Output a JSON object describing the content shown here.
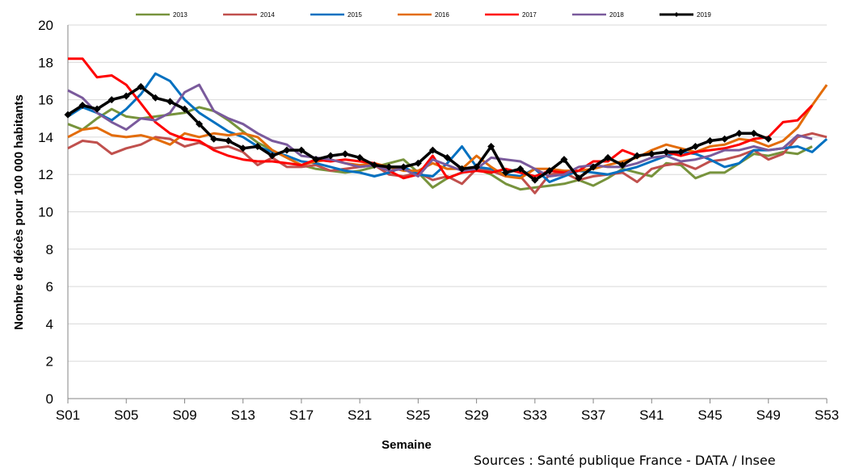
{
  "chart_data": {
    "type": "line",
    "xlabel": "Semaine",
    "ylabel": "Nombre de décès pour 100 000 habitants",
    "source": "Sources : Santé publique France - DATA / Insee",
    "ylim": [
      0,
      20
    ],
    "yticks": [
      0,
      2,
      4,
      6,
      8,
      10,
      12,
      14,
      16,
      18,
      20
    ],
    "xlim": [
      1,
      53
    ],
    "xticks": [
      1,
      5,
      9,
      13,
      17,
      21,
      25,
      29,
      33,
      37,
      41,
      45,
      49,
      53
    ],
    "xtick_labels": [
      "S01",
      "S05",
      "S09",
      "S13",
      "S17",
      "S21",
      "S25",
      "S29",
      "S33",
      "S37",
      "S41",
      "S45",
      "S49",
      "S53"
    ],
    "grid": "horizontal",
    "legend_position": "top",
    "series": [
      {
        "name": "2013",
        "color": "#77933c",
        "values": [
          14.7,
          14.4,
          15.0,
          15.5,
          15.1,
          15.0,
          15.1,
          15.2,
          15.3,
          15.6,
          15.4,
          14.9,
          14.3,
          13.7,
          13.3,
          12.9,
          12.5,
          12.3,
          12.2,
          12.1,
          12.2,
          12.4,
          12.6,
          12.8,
          12.1,
          11.3,
          11.8,
          12.1,
          12.3,
          12.0,
          11.5,
          11.2,
          11.3,
          11.4,
          11.5,
          11.7,
          11.4,
          11.8,
          12.3,
          12.1,
          11.9,
          12.6,
          12.5,
          11.8,
          12.1,
          12.1,
          12.6,
          13.1,
          13.0,
          13.2,
          13.1,
          13.5
        ]
      },
      {
        "name": "2014",
        "color": "#c0504d",
        "values": [
          13.4,
          13.8,
          13.7,
          13.1,
          13.4,
          13.6,
          14.0,
          13.9,
          13.5,
          13.7,
          13.4,
          13.5,
          13.2,
          12.5,
          12.9,
          12.4,
          12.4,
          12.5,
          12.2,
          12.3,
          12.4,
          12.5,
          12.0,
          11.9,
          12.1,
          11.7,
          11.9,
          11.5,
          12.3,
          12.2,
          11.9,
          11.9,
          11.0,
          12.0,
          12.1,
          11.7,
          11.9,
          12.0,
          12.1,
          11.6,
          12.3,
          12.5,
          12.6,
          12.3,
          12.7,
          12.8,
          13.0,
          13.3,
          12.8,
          13.1,
          14.0,
          14.2,
          14.0
        ]
      },
      {
        "name": "2015",
        "color": "#0070c0",
        "values": [
          15.1,
          15.6,
          15.3,
          14.9,
          15.5,
          16.3,
          17.4,
          17.0,
          16.0,
          15.3,
          14.8,
          14.3,
          14.0,
          13.5,
          13.2,
          13.0,
          12.7,
          12.6,
          12.4,
          12.2,
          12.1,
          11.9,
          12.1,
          12.4,
          12.0,
          11.9,
          12.6,
          13.5,
          12.4,
          12.3,
          12.0,
          11.9,
          12.3,
          11.6,
          11.9,
          12.2,
          12.1,
          12.0,
          12.2,
          12.4,
          12.7,
          13.0,
          13.2,
          13.1,
          12.8,
          12.4,
          12.6,
          13.3,
          13.3,
          13.4,
          13.5,
          13.2,
          13.9
        ]
      },
      {
        "name": "2016",
        "color": "#e36c09",
        "values": [
          14.0,
          14.4,
          14.5,
          14.1,
          14.0,
          14.1,
          13.9,
          13.6,
          14.2,
          14.0,
          14.2,
          14.1,
          14.2,
          14.0,
          13.3,
          12.9,
          12.5,
          12.7,
          12.8,
          12.6,
          12.5,
          12.6,
          12.4,
          12.2,
          12.2,
          12.6,
          12.3,
          12.3,
          13.0,
          12.4,
          11.9,
          11.8,
          12.3,
          12.3,
          12.2,
          12.2,
          12.3,
          12.5,
          12.7,
          12.9,
          13.3,
          13.6,
          13.4,
          13.2,
          13.5,
          13.6,
          13.9,
          13.8,
          13.5,
          13.8,
          14.5,
          15.7,
          16.8
        ]
      },
      {
        "name": "2017",
        "color": "#ff0000",
        "values": [
          18.2,
          18.2,
          17.2,
          17.3,
          16.8,
          15.8,
          14.8,
          14.2,
          13.9,
          13.8,
          13.3,
          13.0,
          12.8,
          12.7,
          12.7,
          12.6,
          12.5,
          12.8,
          12.7,
          12.8,
          12.7,
          12.6,
          12.2,
          11.8,
          12.0,
          13.0,
          11.8,
          12.1,
          12.2,
          12.1,
          12.3,
          12.1,
          11.9,
          12.2,
          12.1,
          12.2,
          12.7,
          12.7,
          13.3,
          13.0,
          13.1,
          13.2,
          13.0,
          13.2,
          13.3,
          13.4,
          13.6,
          13.9,
          14.0,
          14.8,
          14.9,
          15.7
        ]
      },
      {
        "name": "2018",
        "color": "#7a5a9c",
        "values": [
          16.5,
          16.1,
          15.3,
          14.8,
          14.4,
          15.0,
          14.9,
          15.3,
          16.4,
          16.8,
          15.4,
          15.0,
          14.7,
          14.2,
          13.8,
          13.6,
          13.0,
          12.9,
          12.8,
          12.6,
          12.4,
          12.5,
          12.2,
          12.3,
          11.9,
          12.8,
          12.5,
          12.2,
          12.3,
          12.9,
          12.8,
          12.7,
          12.3,
          11.9,
          12.0,
          12.4,
          12.5,
          12.4,
          12.4,
          12.6,
          12.9,
          13.0,
          12.7,
          12.8,
          13.0,
          13.3,
          13.3,
          13.5,
          13.3,
          13.4,
          14.1,
          13.9
        ]
      },
      {
        "name": "2019",
        "color": "#000000",
        "marker": "diamond",
        "values": [
          15.2,
          15.7,
          15.5,
          16.0,
          16.2,
          16.7,
          16.1,
          15.9,
          15.5,
          14.7,
          13.9,
          13.8,
          13.4,
          13.5,
          13.0,
          13.3,
          13.3,
          12.8,
          13.0,
          13.1,
          12.9,
          12.5,
          12.4,
          12.4,
          12.6,
          13.3,
          12.9,
          12.3,
          12.4,
          13.5,
          12.1,
          12.3,
          11.7,
          12.2,
          12.8,
          11.8,
          12.4,
          12.9,
          12.5,
          13.0,
          13.1,
          13.2,
          13.2,
          13.5,
          13.8,
          13.9,
          14.2,
          14.2,
          13.9
        ]
      }
    ]
  }
}
